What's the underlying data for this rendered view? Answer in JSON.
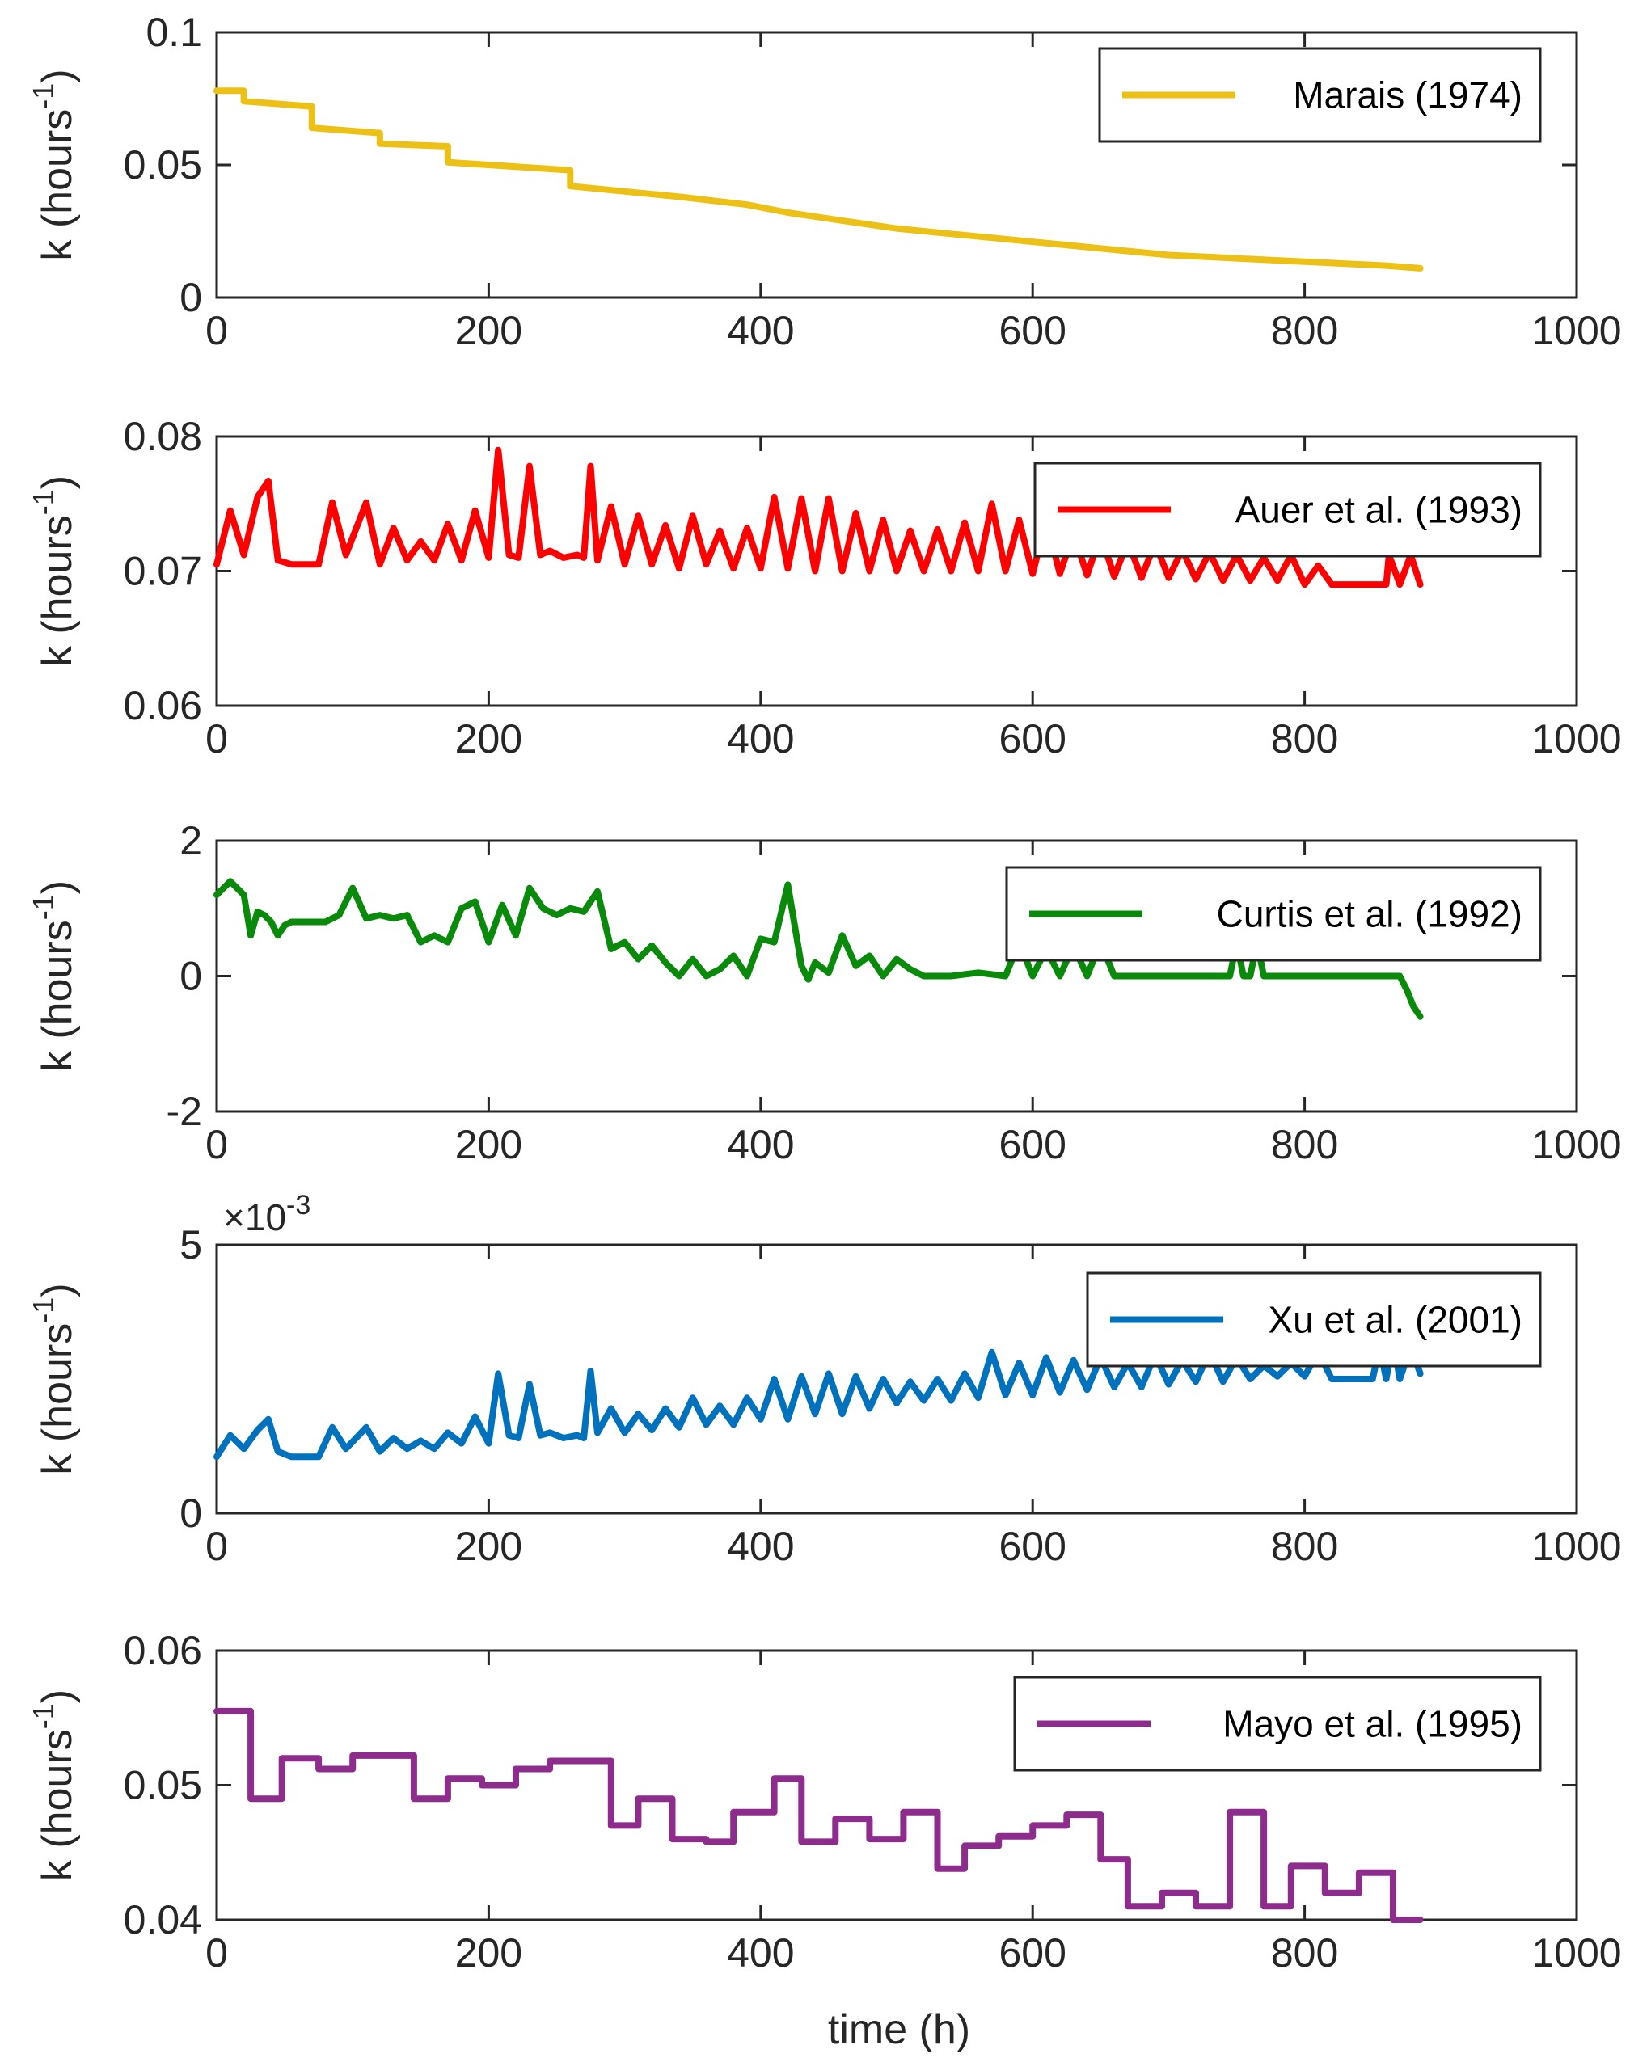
{
  "figure": {
    "xlabel": "time (h)"
  },
  "chart_data": [
    {
      "type": "line",
      "ylabel_main": "k (hours",
      "ylabel_sup": "-1",
      "ylabel_close": ")",
      "xlim": [
        0,
        1000
      ],
      "ylim": [
        0,
        0.1
      ],
      "xticks": [
        0,
        200,
        400,
        600,
        800,
        1000
      ],
      "xtick_labels": [
        "0",
        "200",
        "400",
        "600",
        "800",
        "1000"
      ],
      "yticks": [
        0,
        0.05,
        0.1
      ],
      "ytick_labels": [
        "0",
        "0.05",
        "0.1"
      ],
      "legend_position": "top-right",
      "series": [
        {
          "name": "Marais (1974)",
          "color": "#EDC016",
          "x": [
            0,
            20,
            20,
            70,
            70,
            120,
            120,
            170,
            170,
            260,
            260,
            300,
            340,
            390,
            420,
            460,
            500,
            540,
            580,
            620,
            660,
            700,
            740,
            780,
            820,
            860,
            885
          ],
          "y": [
            0.078,
            0.078,
            0.074,
            0.072,
            0.064,
            0.062,
            0.058,
            0.057,
            0.051,
            0.048,
            0.042,
            0.04,
            0.038,
            0.035,
            0.032,
            0.029,
            0.026,
            0.024,
            0.022,
            0.02,
            0.018,
            0.016,
            0.015,
            0.014,
            0.013,
            0.012,
            0.011
          ]
        }
      ]
    },
    {
      "type": "line",
      "ylabel_main": "k (hours",
      "ylabel_sup": "-1",
      "ylabel_close": ")",
      "xlim": [
        0,
        1000
      ],
      "ylim": [
        0.06,
        0.08
      ],
      "xticks": [
        0,
        200,
        400,
        600,
        800,
        1000
      ],
      "xtick_labels": [
        "0",
        "200",
        "400",
        "600",
        "800",
        "1000"
      ],
      "yticks": [
        0.06,
        0.07,
        0.08
      ],
      "ytick_labels": [
        "0.06",
        "0.07",
        "0.08"
      ],
      "legend_position": "top-right",
      "series": [
        {
          "name": "Auer et al. (1993)",
          "color": "#FF0000",
          "x": [
            0,
            10,
            20,
            30,
            38,
            45,
            55,
            75,
            85,
            95,
            110,
            120,
            130,
            140,
            150,
            160,
            170,
            180,
            190,
            200,
            207,
            215,
            222,
            230,
            238,
            245,
            255,
            265,
            270,
            275,
            280,
            290,
            300,
            310,
            320,
            330,
            340,
            350,
            360,
            370,
            380,
            390,
            400,
            410,
            420,
            430,
            440,
            450,
            460,
            470,
            480,
            490,
            500,
            510,
            520,
            530,
            540,
            550,
            560,
            570,
            580,
            590,
            600,
            610,
            620,
            630,
            640,
            650,
            660,
            670,
            680,
            690,
            700,
            710,
            720,
            730,
            740,
            750,
            760,
            770,
            780,
            790,
            800,
            810,
            820,
            830,
            840,
            850,
            855,
            860,
            862,
            870,
            878,
            885
          ],
          "y": [
            0.0705,
            0.0745,
            0.0712,
            0.0755,
            0.0767,
            0.0708,
            0.0705,
            0.0705,
            0.0751,
            0.0712,
            0.0751,
            0.0705,
            0.0732,
            0.0708,
            0.0722,
            0.0708,
            0.0735,
            0.0708,
            0.0745,
            0.071,
            0.079,
            0.0712,
            0.071,
            0.0778,
            0.0712,
            0.0715,
            0.071,
            0.0712,
            0.071,
            0.0778,
            0.0708,
            0.0748,
            0.0705,
            0.0741,
            0.0705,
            0.0734,
            0.0702,
            0.0741,
            0.0705,
            0.073,
            0.0702,
            0.0732,
            0.0702,
            0.0755,
            0.0702,
            0.0754,
            0.07,
            0.0754,
            0.07,
            0.0743,
            0.07,
            0.0738,
            0.07,
            0.073,
            0.07,
            0.0731,
            0.07,
            0.0736,
            0.07,
            0.075,
            0.07,
            0.0738,
            0.0698,
            0.0738,
            0.0698,
            0.0728,
            0.0697,
            0.0727,
            0.0696,
            0.0722,
            0.0695,
            0.0721,
            0.0695,
            0.0716,
            0.0694,
            0.0714,
            0.0693,
            0.0712,
            0.0693,
            0.071,
            0.0693,
            0.0712,
            0.069,
            0.0704,
            0.069,
            0.069,
            0.069,
            0.069,
            0.069,
            0.069,
            0.0712,
            0.069,
            0.0712,
            0.069
          ]
        }
      ]
    },
    {
      "type": "line",
      "ylabel_main": "k (hours",
      "ylabel_sup": "-1",
      "ylabel_close": ")",
      "xlim": [
        0,
        1000
      ],
      "ylim": [
        -2,
        2
      ],
      "xticks": [
        0,
        200,
        400,
        600,
        800,
        1000
      ],
      "xtick_labels": [
        "0",
        "200",
        "400",
        "600",
        "800",
        "1000"
      ],
      "yticks": [
        -2,
        0,
        2
      ],
      "ytick_labels": [
        "-2",
        "0",
        "2"
      ],
      "legend_position": "top-right",
      "series": [
        {
          "name": "Curtis et al. (1992)",
          "color": "#0A8A0A",
          "x": [
            0,
            10,
            20,
            25,
            30,
            35,
            40,
            45,
            50,
            55,
            70,
            80,
            90,
            100,
            110,
            120,
            130,
            140,
            150,
            160,
            170,
            180,
            190,
            200,
            210,
            220,
            230,
            240,
            250,
            260,
            270,
            280,
            290,
            300,
            310,
            320,
            330,
            340,
            350,
            360,
            370,
            380,
            390,
            400,
            410,
            420,
            430,
            435,
            440,
            450,
            460,
            470,
            480,
            490,
            500,
            510,
            520,
            530,
            540,
            560,
            580,
            590,
            600,
            610,
            620,
            630,
            640,
            650,
            660,
            700,
            745,
            750,
            755,
            760,
            765,
            770,
            800,
            840,
            870,
            875,
            880,
            885
          ],
          "y": [
            1.2,
            1.4,
            1.2,
            0.6,
            0.95,
            0.9,
            0.8,
            0.6,
            0.75,
            0.8,
            0.8,
            0.8,
            0.9,
            1.3,
            0.85,
            0.9,
            0.85,
            0.9,
            0.5,
            0.6,
            0.5,
            1.0,
            1.1,
            0.5,
            1.05,
            0.6,
            1.3,
            1.0,
            0.9,
            1.0,
            0.95,
            1.25,
            0.4,
            0.5,
            0.25,
            0.45,
            0.2,
            0.0,
            0.25,
            0.0,
            0.1,
            0.3,
            0.0,
            0.55,
            0.5,
            1.35,
            0.15,
            -0.05,
            0.2,
            0.05,
            0.6,
            0.15,
            0.3,
            0.0,
            0.25,
            0.1,
            0.0,
            0.0,
            0.0,
            0.05,
            0.0,
            0.5,
            0.0,
            0.4,
            0.0,
            0.45,
            0.0,
            0.5,
            0.0,
            0.0,
            0.0,
            0.5,
            0.0,
            0.0,
            0.5,
            0.0,
            0.0,
            0.0,
            0.0,
            -0.2,
            -0.45,
            -0.6
          ]
        }
      ]
    },
    {
      "type": "line",
      "ylabel_main": "k (hours",
      "ylabel_sup": "-1",
      "ylabel_close": ")",
      "exponent_label": "×10",
      "exponent_sup": "-3",
      "xlim": [
        0,
        1000
      ],
      "ylim": [
        0,
        5
      ],
      "xticks": [
        0,
        200,
        400,
        600,
        800,
        1000
      ],
      "xtick_labels": [
        "0",
        "200",
        "400",
        "600",
        "800",
        "1000"
      ],
      "yticks": [
        0,
        5
      ],
      "ytick_labels": [
        "0",
        "5"
      ],
      "legend_position": "top-right",
      "series": [
        {
          "name": "Xu et al. (2001)",
          "color": "#0072BD",
          "x": [
            0,
            10,
            20,
            30,
            38,
            45,
            55,
            75,
            85,
            95,
            110,
            120,
            130,
            140,
            150,
            160,
            170,
            180,
            190,
            200,
            207,
            215,
            222,
            230,
            238,
            245,
            255,
            265,
            270,
            275,
            280,
            290,
            300,
            310,
            320,
            330,
            340,
            350,
            360,
            370,
            380,
            390,
            400,
            410,
            420,
            430,
            440,
            450,
            460,
            470,
            480,
            490,
            500,
            510,
            520,
            530,
            540,
            550,
            560,
            570,
            580,
            590,
            600,
            610,
            620,
            630,
            640,
            650,
            660,
            670,
            680,
            690,
            700,
            710,
            720,
            730,
            740,
            750,
            760,
            770,
            780,
            790,
            800,
            810,
            820,
            830,
            840,
            850,
            855,
            860,
            865,
            870,
            878,
            885
          ],
          "y": [
            1.05,
            1.45,
            1.2,
            1.55,
            1.75,
            1.15,
            1.05,
            1.05,
            1.6,
            1.2,
            1.6,
            1.15,
            1.4,
            1.2,
            1.35,
            1.2,
            1.5,
            1.3,
            1.8,
            1.3,
            2.6,
            1.45,
            1.4,
            2.4,
            1.45,
            1.5,
            1.4,
            1.45,
            1.4,
            2.65,
            1.5,
            1.95,
            1.5,
            1.85,
            1.55,
            1.95,
            1.6,
            2.15,
            1.65,
            2.0,
            1.65,
            2.15,
            1.75,
            2.5,
            1.75,
            2.55,
            1.85,
            2.6,
            1.85,
            2.55,
            1.95,
            2.5,
            2.05,
            2.45,
            2.1,
            2.5,
            2.1,
            2.6,
            2.15,
            3.0,
            2.2,
            2.8,
            2.2,
            2.9,
            2.25,
            2.85,
            2.3,
            2.9,
            2.35,
            2.8,
            2.35,
            2.95,
            2.4,
            2.85,
            2.45,
            3.0,
            2.45,
            2.9,
            2.5,
            2.75,
            2.55,
            2.8,
            2.55,
            3.0,
            2.5,
            2.5,
            2.5,
            2.5,
            3.1,
            2.5,
            3.2,
            2.5,
            3.1,
            2.6
          ]
        }
      ]
    },
    {
      "type": "line",
      "ylabel_main": "k (hours",
      "ylabel_sup": "-1",
      "ylabel_close": ")",
      "xlim": [
        0,
        1000
      ],
      "ylim": [
        0.04,
        0.06
      ],
      "xticks": [
        0,
        200,
        400,
        600,
        800,
        1000
      ],
      "xtick_labels": [
        "0",
        "200",
        "400",
        "600",
        "800",
        "1000"
      ],
      "yticks": [
        0.04,
        0.05,
        0.06
      ],
      "ytick_labels": [
        "0.04",
        "0.05",
        "0.06"
      ],
      "legend_position": "top-right",
      "series": [
        {
          "name": "Mayo et al. (1995)",
          "color": "#8E2C8E",
          "x": [
            0,
            25,
            25,
            48,
            48,
            75,
            75,
            100,
            100,
            145,
            145,
            170,
            170,
            195,
            195,
            220,
            220,
            245,
            245,
            290,
            290,
            310,
            310,
            335,
            335,
            360,
            360,
            380,
            380,
            410,
            410,
            430,
            430,
            455,
            455,
            480,
            480,
            505,
            505,
            530,
            530,
            550,
            550,
            575,
            575,
            600,
            600,
            625,
            625,
            650,
            650,
            670,
            670,
            695,
            695,
            720,
            720,
            745,
            745,
            770,
            770,
            790,
            790,
            815,
            815,
            840,
            840,
            865,
            865,
            885
          ],
          "y": [
            0.0555,
            0.0555,
            0.049,
            0.049,
            0.052,
            0.052,
            0.0512,
            0.0512,
            0.0522,
            0.0522,
            0.049,
            0.049,
            0.0505,
            0.0505,
            0.05,
            0.05,
            0.0512,
            0.0512,
            0.0518,
            0.0518,
            0.047,
            0.047,
            0.049,
            0.049,
            0.046,
            0.046,
            0.0458,
            0.0458,
            0.048,
            0.048,
            0.0505,
            0.0505,
            0.0458,
            0.0458,
            0.0475,
            0.0475,
            0.046,
            0.046,
            0.048,
            0.048,
            0.0438,
            0.0438,
            0.0455,
            0.0455,
            0.0462,
            0.0462,
            0.047,
            0.047,
            0.0478,
            0.0478,
            0.0445,
            0.0445,
            0.041,
            0.041,
            0.042,
            0.042,
            0.041,
            0.041,
            0.048,
            0.048,
            0.041,
            0.041,
            0.044,
            0.044,
            0.042,
            0.042,
            0.0435,
            0.0435,
            0.04,
            0.04
          ]
        }
      ]
    }
  ]
}
